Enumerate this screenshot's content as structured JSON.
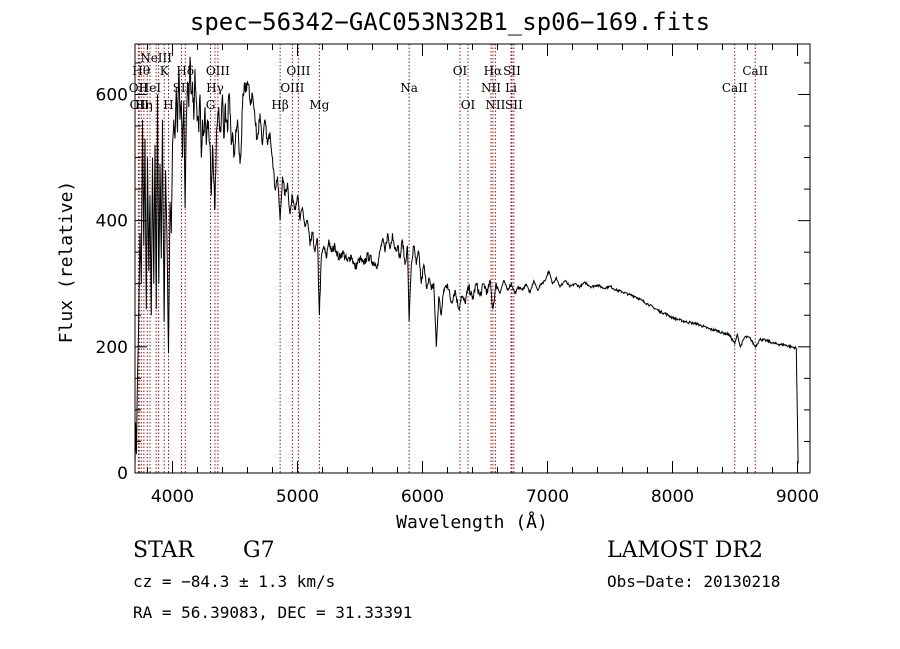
{
  "header": {
    "title": "spec−56342−GAC053N32B1_sp06−169.fits"
  },
  "info": {
    "object_class": "STAR",
    "subclass": "G7",
    "survey": "LAMOST DR2",
    "cz": "cz = −84.3 ± 1.3 km/s",
    "obs_date": "Obs−Date: 20130218",
    "coords": "RA =  56.39083, DEC =  31.33391"
  },
  "chart_data": {
    "type": "line",
    "title": "spec−56342−GAC053N32B1_sp06−169.fits",
    "xlabel": "Wavelength (Å)",
    "ylabel": "Flux (relative)",
    "xlim": [
      3700,
      9100
    ],
    "ylim": [
      0,
      680
    ],
    "xticks": [
      4000,
      5000,
      6000,
      7000,
      8000,
      9000
    ],
    "yticks": [
      0,
      200,
      400,
      600
    ],
    "grid": false,
    "line_color": "#000000",
    "marker_color": "#8b1a1a",
    "series": [
      {
        "values": [
          [
            3700,
            10
          ],
          [
            3705,
            80
          ],
          [
            3712,
            30
          ],
          [
            3720,
            150
          ],
          [
            3730,
            250
          ],
          [
            3740,
            380
          ],
          [
            3750,
            300
          ],
          [
            3760,
            560
          ],
          [
            3770,
            360
          ],
          [
            3780,
            530
          ],
          [
            3790,
            260
          ],
          [
            3800,
            500
          ],
          [
            3810,
            320
          ],
          [
            3820,
            440
          ],
          [
            3830,
            250
          ],
          [
            3840,
            500
          ],
          [
            3850,
            300
          ],
          [
            3860,
            520
          ],
          [
            3870,
            260
          ],
          [
            3880,
            600
          ],
          [
            3890,
            300
          ],
          [
            3900,
            490
          ],
          [
            3910,
            340
          ],
          [
            3920,
            560
          ],
          [
            3933,
            240
          ],
          [
            3945,
            480
          ],
          [
            3955,
            380
          ],
          [
            3968,
            190
          ],
          [
            3980,
            430
          ],
          [
            3990,
            380
          ],
          [
            4000,
            520
          ],
          [
            4010,
            560
          ],
          [
            4020,
            530
          ],
          [
            4030,
            610
          ],
          [
            4040,
            540
          ],
          [
            4050,
            640
          ],
          [
            4060,
            560
          ],
          [
            4070,
            590
          ],
          [
            4080,
            500
          ],
          [
            4090,
            590
          ],
          [
            4101,
            420
          ],
          [
            4110,
            560
          ],
          [
            4120,
            620
          ],
          [
            4130,
            580
          ],
          [
            4140,
            660
          ],
          [
            4150,
            600
          ],
          [
            4160,
            620
          ],
          [
            4170,
            560
          ],
          [
            4180,
            640
          ],
          [
            4190,
            590
          ],
          [
            4200,
            560
          ],
          [
            4210,
            540
          ],
          [
            4220,
            600
          ],
          [
            4230,
            500
          ],
          [
            4240,
            560
          ],
          [
            4250,
            540
          ],
          [
            4260,
            580
          ],
          [
            4270,
            520
          ],
          [
            4280,
            560
          ],
          [
            4290,
            540
          ],
          [
            4300,
            520
          ],
          [
            4310,
            440
          ],
          [
            4320,
            520
          ],
          [
            4330,
            460
          ],
          [
            4340,
            420
          ],
          [
            4350,
            520
          ],
          [
            4360,
            560
          ],
          [
            4370,
            580
          ],
          [
            4380,
            540
          ],
          [
            4390,
            560
          ],
          [
            4400,
            600
          ],
          [
            4410,
            530
          ],
          [
            4420,
            580
          ],
          [
            4430,
            560
          ],
          [
            4440,
            540
          ],
          [
            4450,
            600
          ],
          [
            4460,
            570
          ],
          [
            4470,
            520
          ],
          [
            4480,
            540
          ],
          [
            4490,
            500
          ],
          [
            4500,
            520
          ],
          [
            4510,
            540
          ],
          [
            4520,
            560
          ],
          [
            4530,
            520
          ],
          [
            4540,
            490
          ],
          [
            4550,
            520
          ],
          [
            4560,
            580
          ],
          [
            4570,
            600
          ],
          [
            4580,
            610
          ],
          [
            4600,
            620
          ],
          [
            4620,
            590
          ],
          [
            4640,
            600
          ],
          [
            4660,
            560
          ],
          [
            4680,
            530
          ],
          [
            4700,
            570
          ],
          [
            4720,
            520
          ],
          [
            4740,
            560
          ],
          [
            4760,
            520
          ],
          [
            4780,
            540
          ],
          [
            4800,
            500
          ],
          [
            4820,
            450
          ],
          [
            4840,
            470
          ],
          [
            4861,
            400
          ],
          [
            4880,
            470
          ],
          [
            4900,
            440
          ],
          [
            4920,
            460
          ],
          [
            4940,
            410
          ],
          [
            4960,
            440
          ],
          [
            4980,
            420
          ],
          [
            5000,
            440
          ],
          [
            5020,
            400
          ],
          [
            5040,
            420
          ],
          [
            5060,
            390
          ],
          [
            5080,
            400
          ],
          [
            5100,
            360
          ],
          [
            5120,
            380
          ],
          [
            5140,
            350
          ],
          [
            5160,
            370
          ],
          [
            5175,
            250
          ],
          [
            5190,
            340
          ],
          [
            5210,
            360
          ],
          [
            5230,
            340
          ],
          [
            5250,
            370
          ],
          [
            5270,
            350
          ],
          [
            5300,
            360
          ],
          [
            5330,
            340
          ],
          [
            5360,
            350
          ],
          [
            5400,
            335
          ],
          [
            5430,
            345
          ],
          [
            5460,
            325
          ],
          [
            5500,
            340
          ],
          [
            5530,
            330
          ],
          [
            5560,
            345
          ],
          [
            5600,
            335
          ],
          [
            5640,
            330
          ],
          [
            5680,
            370
          ],
          [
            5700,
            350
          ],
          [
            5720,
            380
          ],
          [
            5740,
            355
          ],
          [
            5760,
            380
          ],
          [
            5780,
            355
          ],
          [
            5800,
            360
          ],
          [
            5820,
            340
          ],
          [
            5840,
            370
          ],
          [
            5860,
            330
          ],
          [
            5880,
            360
          ],
          [
            5893,
            240
          ],
          [
            5910,
            330
          ],
          [
            5930,
            360
          ],
          [
            5950,
            330
          ],
          [
            5970,
            350
          ],
          [
            5990,
            300
          ],
          [
            6010,
            330
          ],
          [
            6030,
            295
          ],
          [
            6050,
            310
          ],
          [
            6070,
            290
          ],
          [
            6090,
            300
          ],
          [
            6110,
            200
          ],
          [
            6130,
            280
          ],
          [
            6150,
            250
          ],
          [
            6170,
            290
          ],
          [
            6200,
            300
          ],
          [
            6230,
            270
          ],
          [
            6260,
            290
          ],
          [
            6290,
            260
          ],
          [
            6310,
            280
          ],
          [
            6340,
            270
          ],
          [
            6370,
            295
          ],
          [
            6400,
            275
          ],
          [
            6430,
            300
          ],
          [
            6460,
            280
          ],
          [
            6490,
            300
          ],
          [
            6520,
            285
          ],
          [
            6540,
            305
          ],
          [
            6563,
            260
          ],
          [
            6590,
            300
          ],
          [
            6620,
            285
          ],
          [
            6650,
            305
          ],
          [
            6680,
            290
          ],
          [
            6710,
            300
          ],
          [
            6740,
            285
          ],
          [
            6770,
            295
          ],
          [
            6800,
            290
          ],
          [
            6830,
            300
          ],
          [
            6860,
            285
          ],
          [
            6890,
            305
          ],
          [
            6920,
            290
          ],
          [
            6950,
            300
          ],
          [
            6980,
            305
          ],
          [
            7010,
            320
          ],
          [
            7040,
            300
          ],
          [
            7070,
            310
          ],
          [
            7100,
            295
          ],
          [
            7140,
            305
          ],
          [
            7180,
            295
          ],
          [
            7220,
            300
          ],
          [
            7260,
            295
          ],
          [
            7300,
            302
          ],
          [
            7350,
            295
          ],
          [
            7400,
            298
          ],
          [
            7450,
            293
          ],
          [
            7500,
            296
          ],
          [
            7550,
            290
          ],
          [
            7600,
            287
          ],
          [
            7650,
            283
          ],
          [
            7700,
            280
          ],
          [
            7750,
            274
          ],
          [
            7800,
            268
          ],
          [
            7850,
            262
          ],
          [
            7900,
            256
          ],
          [
            7950,
            252
          ],
          [
            8000,
            246
          ],
          [
            8050,
            243
          ],
          [
            8100,
            240
          ],
          [
            8150,
            238
          ],
          [
            8200,
            236
          ],
          [
            8250,
            232
          ],
          [
            8300,
            228
          ],
          [
            8350,
            226
          ],
          [
            8400,
            222
          ],
          [
            8450,
            220
          ],
          [
            8498,
            205
          ],
          [
            8520,
            220
          ],
          [
            8542,
            200
          ],
          [
            8580,
            216
          ],
          [
            8620,
            214
          ],
          [
            8662,
            200
          ],
          [
            8700,
            212
          ],
          [
            8750,
            210
          ],
          [
            8800,
            206
          ],
          [
            8850,
            204
          ],
          [
            8900,
            203
          ],
          [
            8950,
            200
          ],
          [
            8990,
            198
          ],
          [
            9005,
            15
          ]
        ]
      }
    ],
    "lines": [
      {
        "wave": 3727,
        "label": "OII",
        "row": 2
      },
      {
        "wave": 3734,
        "label": "OII",
        "row": 3
      },
      {
        "wave": 3750,
        "label": "Hθ",
        "row": 1
      },
      {
        "wave": 3771,
        "label": "Hη",
        "row": 3
      },
      {
        "wave": 3798,
        "label": "",
        "row": 0
      },
      {
        "wave": 3820,
        "label": "HeI",
        "row": 2
      },
      {
        "wave": 3869,
        "label": "NeIII",
        "row": 0
      },
      {
        "wave": 3889,
        "label": "",
        "row": 0
      },
      {
        "wave": 3934,
        "label": "K",
        "row": 1
      },
      {
        "wave": 3968,
        "label": "H",
        "row": 3
      },
      {
        "wave": 4072,
        "label": "SII",
        "row": 2
      },
      {
        "wave": 4102,
        "label": "Hδ",
        "row": 1
      },
      {
        "wave": 4304,
        "label": "G",
        "row": 3
      },
      {
        "wave": 4340,
        "label": "Hγ",
        "row": 2
      },
      {
        "wave": 4363,
        "label": "OIII",
        "row": 1
      },
      {
        "wave": 4861,
        "label": "Hβ",
        "row": 3
      },
      {
        "wave": 4959,
        "label": "OIII",
        "row": 2
      },
      {
        "wave": 5007,
        "label": "OIII",
        "row": 1
      },
      {
        "wave": 5175,
        "label": "Mg",
        "row": 3
      },
      {
        "wave": 5893,
        "label": "Na",
        "row": 2
      },
      {
        "wave": 6300,
        "label": "OI",
        "row": 1
      },
      {
        "wave": 6364,
        "label": "OI",
        "row": 3
      },
      {
        "wave": 6548,
        "label": "NII",
        "row": 2
      },
      {
        "wave": 6563,
        "label": "Hα",
        "row": 1
      },
      {
        "wave": 6583,
        "label": "NII",
        "row": 3
      },
      {
        "wave": 6708,
        "label": "Li",
        "row": 2
      },
      {
        "wave": 6716,
        "label": "SII",
        "row": 1
      },
      {
        "wave": 6731,
        "label": "SII",
        "row": 3
      },
      {
        "wave": 8498,
        "label": "CaII",
        "row": 2
      },
      {
        "wave": 8662,
        "label": "CaII",
        "row": 1
      }
    ]
  }
}
